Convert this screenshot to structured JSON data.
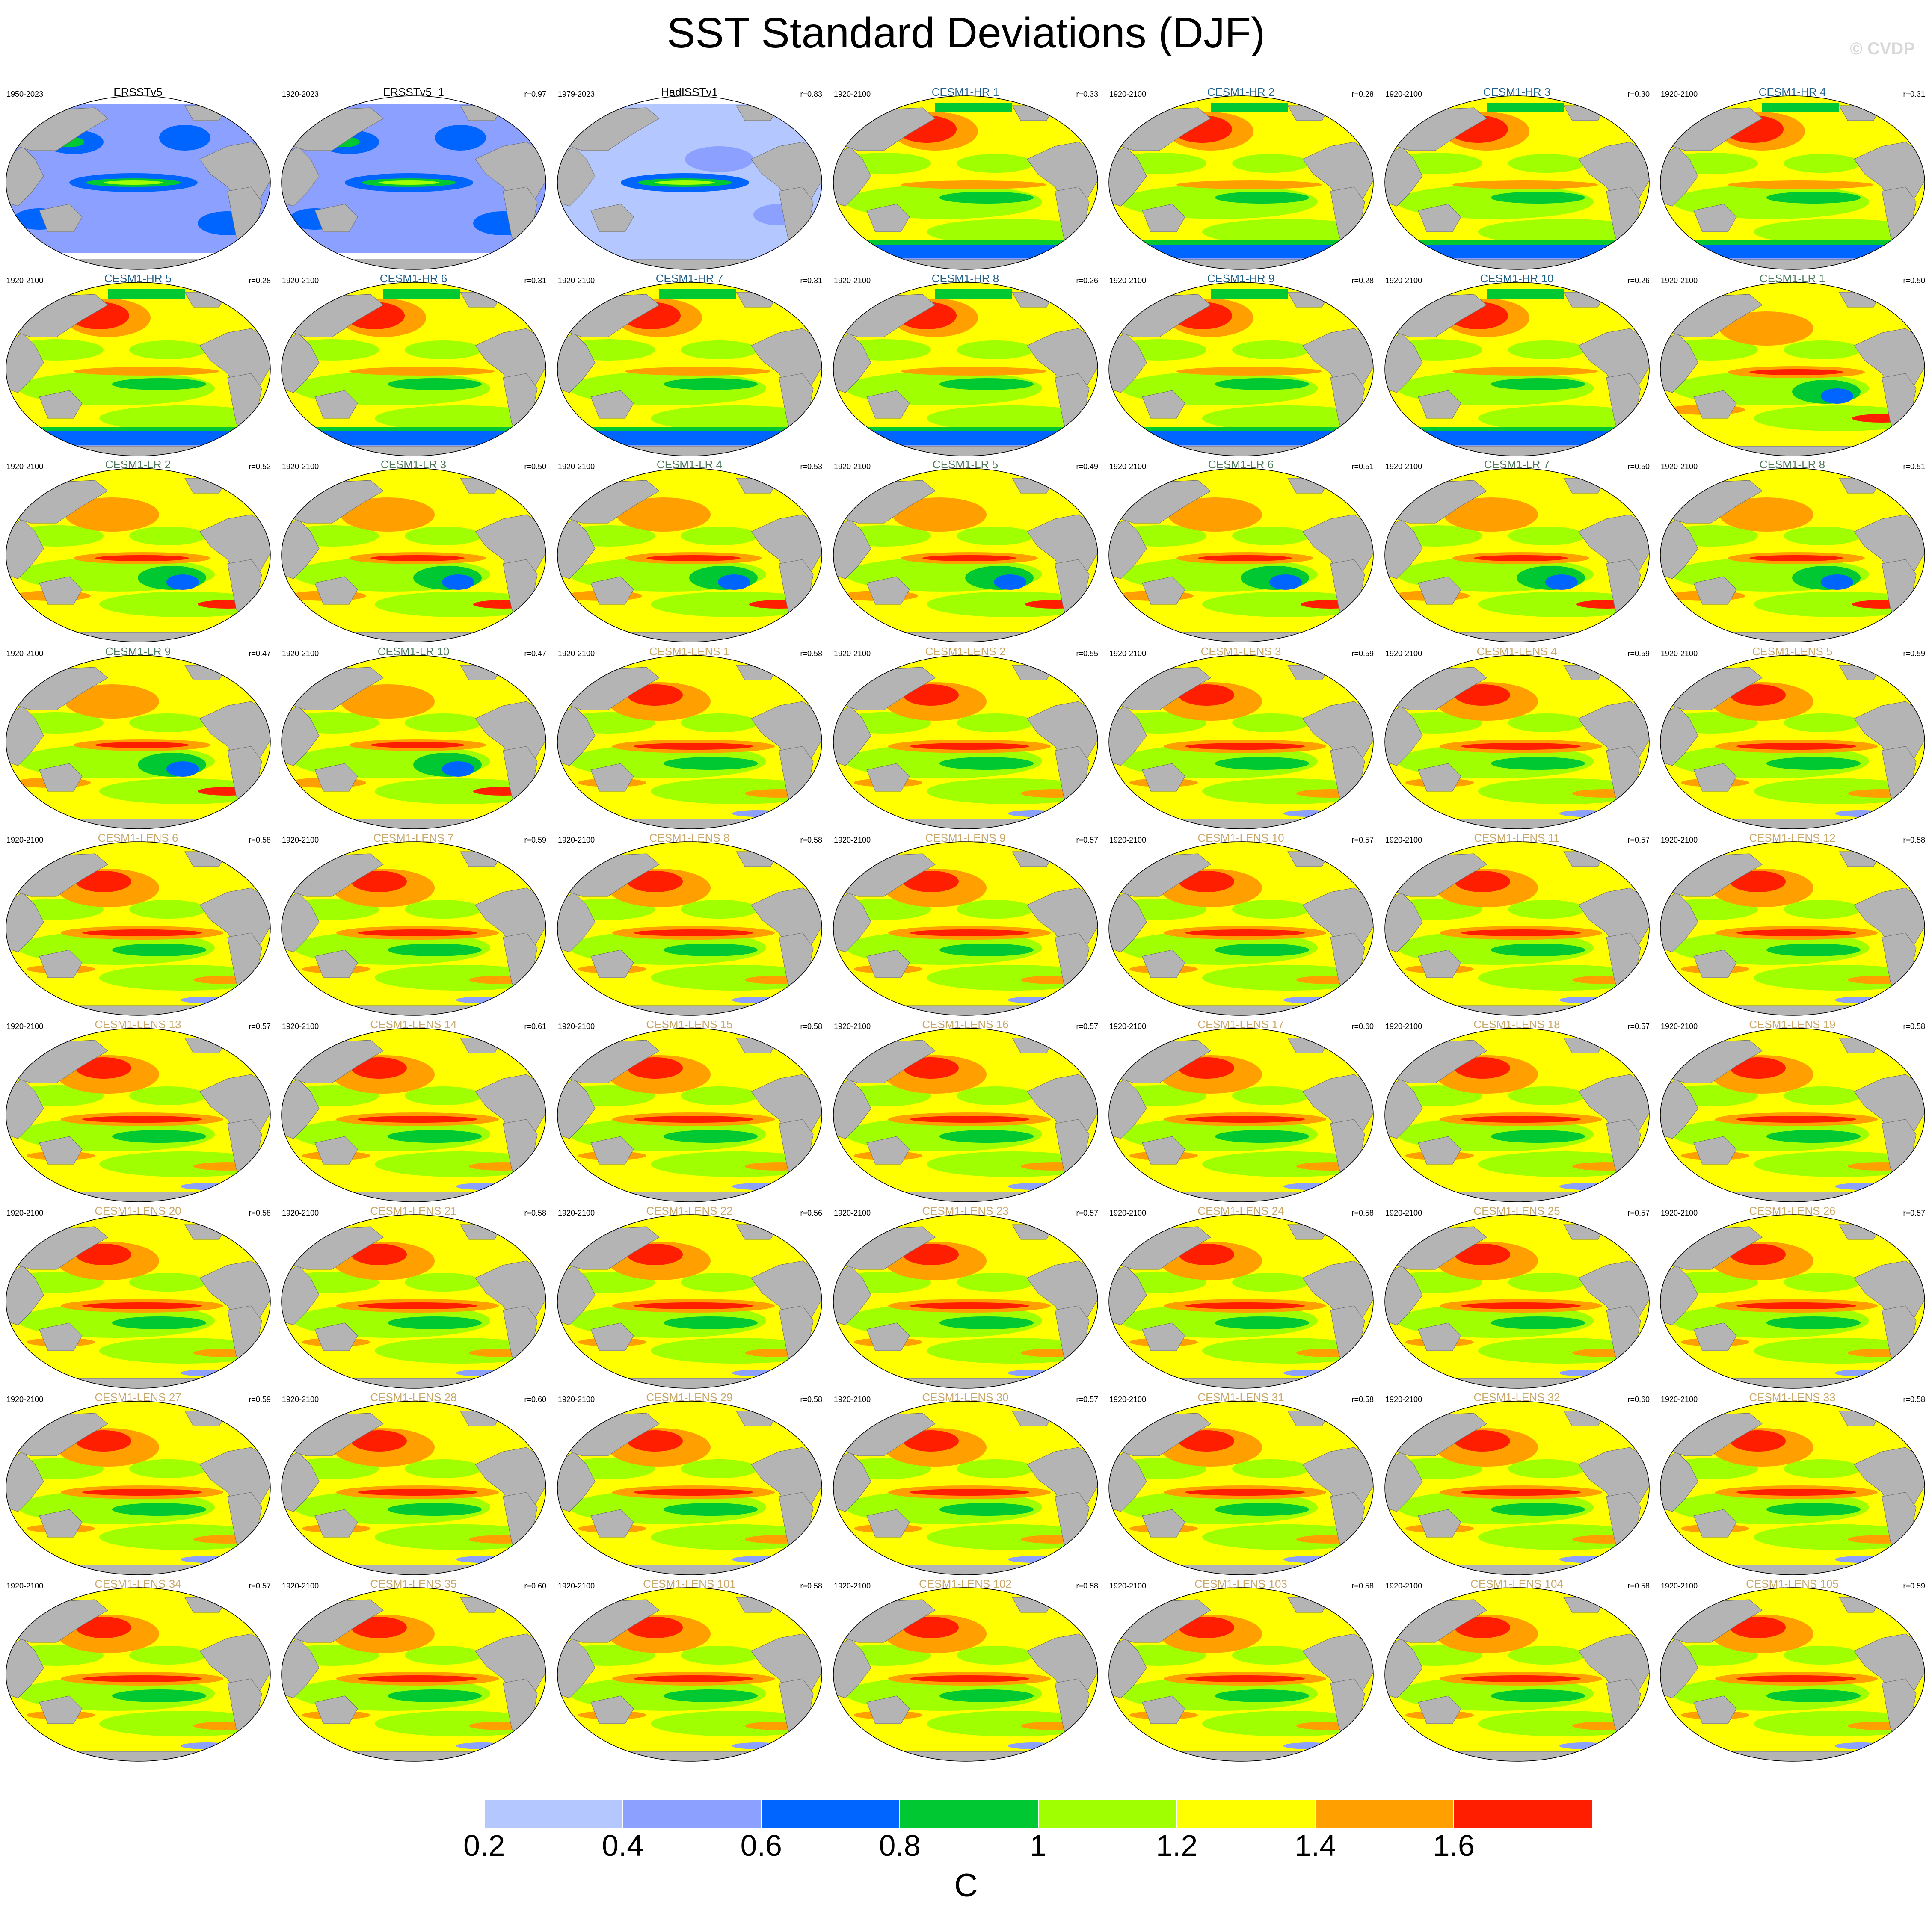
{
  "figure": {
    "title": "SST Standard Deviations (DJF)",
    "watermark": "© CVDP",
    "units": "C"
  },
  "colorbar": {
    "colors": [
      "#ffffff",
      "#b4c8ff",
      "#8ca0ff",
      "#0064ff",
      "#00c832",
      "#a0ff00",
      "#ffff00",
      "#ffa000",
      "#ff1e00"
    ],
    "tick_labels": [
      "0.2",
      "0.4",
      "0.6",
      "0.8",
      "1",
      "1.2",
      "1.4",
      "1.6"
    ]
  },
  "title_colors": {
    "obs": "#000000",
    "hr": "#1f5f87",
    "lr": "#4c7a5a",
    "lens": "#c9a86a"
  },
  "panels": [
    {
      "name": "ERSSTv5",
      "period": "1950-2023",
      "corr": "",
      "group": "obs"
    },
    {
      "name": "ERSSTv5_1",
      "period": "1920-2023",
      "corr": "r=0.97",
      "group": "obs"
    },
    {
      "name": "HadISSTv1",
      "period": "1979-2023",
      "corr": "r=0.83",
      "group": "obs"
    },
    {
      "name": "CESM1-HR 1",
      "period": "1920-2100",
      "corr": "r=0.33",
      "group": "hr"
    },
    {
      "name": "CESM1-HR 2",
      "period": "1920-2100",
      "corr": "r=0.28",
      "group": "hr"
    },
    {
      "name": "CESM1-HR 3",
      "period": "1920-2100",
      "corr": "r=0.30",
      "group": "hr"
    },
    {
      "name": "CESM1-HR 4",
      "period": "1920-2100",
      "corr": "r=0.31",
      "group": "hr"
    },
    {
      "name": "CESM1-HR 5",
      "period": "1920-2100",
      "corr": "r=0.28",
      "group": "hr"
    },
    {
      "name": "CESM1-HR 6",
      "period": "1920-2100",
      "corr": "r=0.31",
      "group": "hr"
    },
    {
      "name": "CESM1-HR 7",
      "period": "1920-2100",
      "corr": "r=0.31",
      "group": "hr"
    },
    {
      "name": "CESM1-HR 8",
      "period": "1920-2100",
      "corr": "r=0.26",
      "group": "hr"
    },
    {
      "name": "CESM1-HR 9",
      "period": "1920-2100",
      "corr": "r=0.28",
      "group": "hr"
    },
    {
      "name": "CESM1-HR 10",
      "period": "1920-2100",
      "corr": "r=0.26",
      "group": "hr"
    },
    {
      "name": "CESM1-LR 1",
      "period": "1920-2100",
      "corr": "r=0.50",
      "group": "lr"
    },
    {
      "name": "CESM1-LR 2",
      "period": "1920-2100",
      "corr": "r=0.52",
      "group": "lr"
    },
    {
      "name": "CESM1-LR 3",
      "period": "1920-2100",
      "corr": "r=0.50",
      "group": "lr"
    },
    {
      "name": "CESM1-LR 4",
      "period": "1920-2100",
      "corr": "r=0.53",
      "group": "lr"
    },
    {
      "name": "CESM1-LR 5",
      "period": "1920-2100",
      "corr": "r=0.49",
      "group": "lr"
    },
    {
      "name": "CESM1-LR 6",
      "period": "1920-2100",
      "corr": "r=0.51",
      "group": "lr"
    },
    {
      "name": "CESM1-LR 7",
      "period": "1920-2100",
      "corr": "r=0.50",
      "group": "lr"
    },
    {
      "name": "CESM1-LR 8",
      "period": "1920-2100",
      "corr": "r=0.51",
      "group": "lr"
    },
    {
      "name": "CESM1-LR 9",
      "period": "1920-2100",
      "corr": "r=0.47",
      "group": "lr"
    },
    {
      "name": "CESM1-LR 10",
      "period": "1920-2100",
      "corr": "r=0.47",
      "group": "lr"
    },
    {
      "name": "CESM1-LENS 1",
      "period": "1920-2100",
      "corr": "r=0.58",
      "group": "lens"
    },
    {
      "name": "CESM1-LENS 2",
      "period": "1920-2100",
      "corr": "r=0.55",
      "group": "lens"
    },
    {
      "name": "CESM1-LENS 3",
      "period": "1920-2100",
      "corr": "r=0.59",
      "group": "lens"
    },
    {
      "name": "CESM1-LENS 4",
      "period": "1920-2100",
      "corr": "r=0.59",
      "group": "lens"
    },
    {
      "name": "CESM1-LENS 5",
      "period": "1920-2100",
      "corr": "r=0.59",
      "group": "lens"
    },
    {
      "name": "CESM1-LENS 6",
      "period": "1920-2100",
      "corr": "r=0.58",
      "group": "lens"
    },
    {
      "name": "CESM1-LENS 7",
      "period": "1920-2100",
      "corr": "r=0.59",
      "group": "lens"
    },
    {
      "name": "CESM1-LENS 8",
      "period": "1920-2100",
      "corr": "r=0.58",
      "group": "lens"
    },
    {
      "name": "CESM1-LENS 9",
      "period": "1920-2100",
      "corr": "r=0.57",
      "group": "lens"
    },
    {
      "name": "CESM1-LENS 10",
      "period": "1920-2100",
      "corr": "r=0.57",
      "group": "lens"
    },
    {
      "name": "CESM1-LENS 11",
      "period": "1920-2100",
      "corr": "r=0.57",
      "group": "lens"
    },
    {
      "name": "CESM1-LENS 12",
      "period": "1920-2100",
      "corr": "r=0.58",
      "group": "lens"
    },
    {
      "name": "CESM1-LENS 13",
      "period": "1920-2100",
      "corr": "r=0.57",
      "group": "lens"
    },
    {
      "name": "CESM1-LENS 14",
      "period": "1920-2100",
      "corr": "r=0.61",
      "group": "lens"
    },
    {
      "name": "CESM1-LENS 15",
      "period": "1920-2100",
      "corr": "r=0.58",
      "group": "lens"
    },
    {
      "name": "CESM1-LENS 16",
      "period": "1920-2100",
      "corr": "r=0.57",
      "group": "lens"
    },
    {
      "name": "CESM1-LENS 17",
      "period": "1920-2100",
      "corr": "r=0.60",
      "group": "lens"
    },
    {
      "name": "CESM1-LENS 18",
      "period": "1920-2100",
      "corr": "r=0.57",
      "group": "lens"
    },
    {
      "name": "CESM1-LENS 19",
      "period": "1920-2100",
      "corr": "r=0.58",
      "group": "lens"
    },
    {
      "name": "CESM1-LENS 20",
      "period": "1920-2100",
      "corr": "r=0.58",
      "group": "lens"
    },
    {
      "name": "CESM1-LENS 21",
      "period": "1920-2100",
      "corr": "r=0.58",
      "group": "lens"
    },
    {
      "name": "CESM1-LENS 22",
      "period": "1920-2100",
      "corr": "r=0.56",
      "group": "lens"
    },
    {
      "name": "CESM1-LENS 23",
      "period": "1920-2100",
      "corr": "r=0.57",
      "group": "lens"
    },
    {
      "name": "CESM1-LENS 24",
      "period": "1920-2100",
      "corr": "r=0.58",
      "group": "lens"
    },
    {
      "name": "CESM1-LENS 25",
      "period": "1920-2100",
      "corr": "r=0.57",
      "group": "lens"
    },
    {
      "name": "CESM1-LENS 26",
      "period": "1920-2100",
      "corr": "r=0.57",
      "group": "lens"
    },
    {
      "name": "CESM1-LENS 27",
      "period": "1920-2100",
      "corr": "r=0.59",
      "group": "lens"
    },
    {
      "name": "CESM1-LENS 28",
      "period": "1920-2100",
      "corr": "r=0.60",
      "group": "lens"
    },
    {
      "name": "CESM1-LENS 29",
      "period": "1920-2100",
      "corr": "r=0.58",
      "group": "lens"
    },
    {
      "name": "CESM1-LENS 30",
      "period": "1920-2100",
      "corr": "r=0.57",
      "group": "lens"
    },
    {
      "name": "CESM1-LENS 31",
      "period": "1920-2100",
      "corr": "r=0.58",
      "group": "lens"
    },
    {
      "name": "CESM1-LENS 32",
      "period": "1920-2100",
      "corr": "r=0.60",
      "group": "lens"
    },
    {
      "name": "CESM1-LENS 33",
      "period": "1920-2100",
      "corr": "r=0.58",
      "group": "lens"
    },
    {
      "name": "CESM1-LENS 34",
      "period": "1920-2100",
      "corr": "r=0.57",
      "group": "lens"
    },
    {
      "name": "CESM1-LENS 35",
      "period": "1920-2100",
      "corr": "r=0.60",
      "group": "lens"
    },
    {
      "name": "CESM1-LENS 101",
      "period": "1920-2100",
      "corr": "r=0.58",
      "group": "lens"
    },
    {
      "name": "CESM1-LENS 102",
      "period": "1920-2100",
      "corr": "r=0.58",
      "group": "lens"
    },
    {
      "name": "CESM1-LENS 103",
      "period": "1920-2100",
      "corr": "r=0.58",
      "group": "lens"
    },
    {
      "name": "CESM1-LENS 104",
      "period": "1920-2100",
      "corr": "r=0.58",
      "group": "lens"
    },
    {
      "name": "CESM1-LENS 105",
      "period": "1920-2100",
      "corr": "r=0.59",
      "group": "lens"
    }
  ]
}
